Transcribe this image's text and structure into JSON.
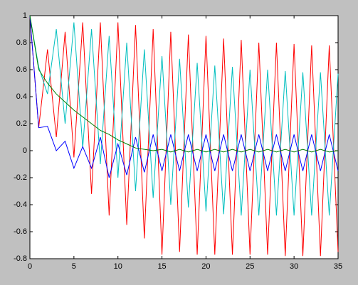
{
  "chart_data": {
    "type": "line",
    "x": [
      0,
      1,
      2,
      3,
      4,
      5,
      6,
      7,
      8,
      9,
      10,
      11,
      12,
      13,
      14,
      15,
      16,
      17,
      18,
      19,
      20,
      21,
      22,
      23,
      24,
      25,
      26,
      27,
      28,
      29,
      30,
      31,
      32,
      33,
      34,
      35
    ],
    "series": [
      {
        "color": "#ff0000",
        "values": [
          1,
          0.17,
          0.75,
          0.1,
          0.88,
          -0.05,
          0.95,
          -0.32,
          0.95,
          -0.48,
          0.95,
          -0.55,
          0.93,
          -0.65,
          0.9,
          -0.77,
          0.88,
          -0.75,
          0.86,
          -0.77,
          0.85,
          -0.77,
          0.83,
          -0.77,
          0.82,
          -0.77,
          0.8,
          -0.77,
          0.8,
          -0.78,
          0.79,
          -0.78,
          0.78,
          -0.78,
          0.78,
          -0.75
        ]
      },
      {
        "color": "#00bfbf",
        "values": [
          1,
          0.62,
          0.42,
          0.9,
          0.2,
          0.95,
          0.02,
          0.9,
          -0.1,
          0.85,
          -0.2,
          0.8,
          -0.3,
          0.75,
          -0.35,
          0.7,
          -0.4,
          0.68,
          -0.42,
          0.65,
          -0.45,
          0.63,
          -0.47,
          0.62,
          -0.48,
          0.6,
          -0.48,
          0.6,
          -0.48,
          0.59,
          -0.48,
          0.58,
          -0.48,
          0.58,
          -0.48,
          0.57
        ]
      },
      {
        "color": "#0000ff",
        "values": [
          1,
          0.17,
          0.18,
          0,
          0.07,
          -0.13,
          0.03,
          -0.13,
          0.1,
          -0.2,
          0.05,
          -0.18,
          0.1,
          -0.16,
          0.12,
          -0.15,
          0.12,
          -0.15,
          0.12,
          -0.15,
          0.12,
          -0.15,
          0.12,
          -0.15,
          0.12,
          -0.15,
          0.12,
          -0.15,
          0.12,
          -0.15,
          0.12,
          -0.15,
          0.12,
          -0.15,
          0.12,
          -0.15
        ]
      },
      {
        "color": "#008000",
        "values": [
          1,
          0.6,
          0.5,
          0.42,
          0.36,
          0.3,
          0.25,
          0.2,
          0.15,
          0.12,
          0.08,
          0.05,
          0.02,
          0.01,
          0,
          0.01,
          -0.01,
          0.01,
          -0.01,
          0.01,
          -0.01,
          0.01,
          -0.01,
          0.01,
          -0.01,
          0.01,
          -0.01,
          0.01,
          -0.01,
          0.01,
          -0.01,
          0.01,
          -0.01,
          0.01,
          -0.01,
          0
        ]
      }
    ],
    "xlim": [
      0,
      35
    ],
    "xticks": [
      0,
      5,
      10,
      15,
      20,
      25,
      30,
      35
    ],
    "ylim": [
      -0.8,
      1
    ],
    "yticks": [
      -0.8,
      -0.6,
      -0.4,
      -0.2,
      0,
      0.2,
      0.4,
      0.6,
      0.8,
      1
    ]
  }
}
